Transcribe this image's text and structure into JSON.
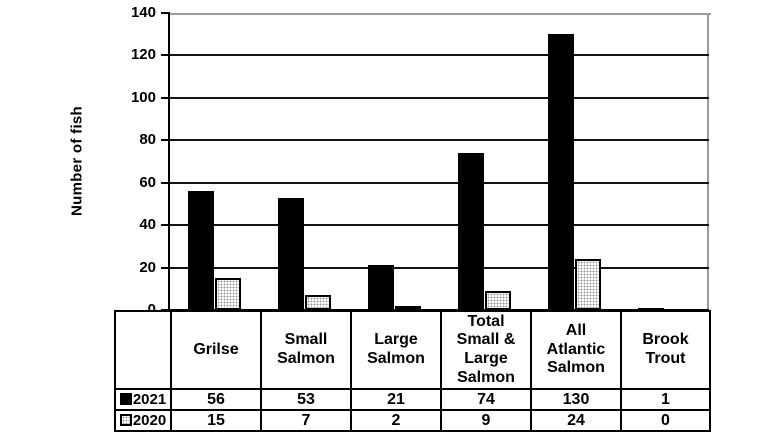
{
  "chart_data": {
    "type": "bar",
    "title": "",
    "ylabel": "Number of fish",
    "xlabel": "",
    "ylim": [
      0,
      140
    ],
    "ytick_step": 20,
    "grid": true,
    "legend_position": "table-rows-left",
    "categories": [
      "Grilse",
      "Small\nSalmon",
      "Large\nSalmon",
      "Total\nSmall &\nLarge\nSalmon",
      "All\nAtlantic\nSalmon",
      "Brook\nTrout"
    ],
    "series": [
      {
        "name": "2021",
        "values": [
          56,
          53,
          21,
          74,
          130,
          1
        ],
        "style": "solid",
        "color": "#000000"
      },
      {
        "name": "2020",
        "values": [
          15,
          7,
          2,
          9,
          24,
          0
        ],
        "style": "dotted",
        "color": "#ffffff"
      }
    ]
  },
  "colors": {
    "background": "#ffffff",
    "bar_solid": "#000000",
    "bar_dotted_fill": "#ffffff",
    "dot_pattern": "#9e9e9e",
    "gridline": "#141414",
    "axis": "#000000",
    "plot_border": "#9b9b9b",
    "table_border": "#000000",
    "text": "#000000"
  }
}
